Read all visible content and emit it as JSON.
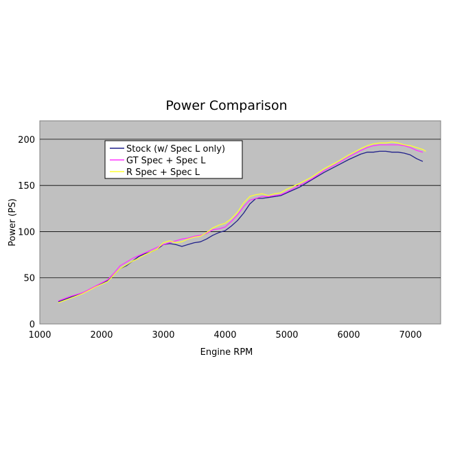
{
  "chart_data": {
    "type": "line",
    "title": "Power Comparison",
    "xlabel": "Engine RPM",
    "ylabel": "Power (PS)",
    "xlim": [
      1000,
      7400
    ],
    "ylim": [
      0,
      220
    ],
    "xticks": [
      1000,
      2000,
      3000,
      4000,
      5000,
      6000,
      7000
    ],
    "yticks": [
      0,
      50,
      100,
      150,
      200
    ],
    "grid": "horizontal",
    "legend_position": "top-left",
    "plot_background": "#c0c0c0",
    "series": [
      {
        "name": "Stock (w/ Spec L only)",
        "color": "#1f1f8a",
        "x": [
          1300,
          1500,
          1700,
          1900,
          2100,
          2200,
          2300,
          2400,
          2500,
          2600,
          2700,
          2800,
          2900,
          3000,
          3100,
          3200,
          3300,
          3400,
          3500,
          3600,
          3700,
          3800,
          3900,
          4000,
          4100,
          4200,
          4300,
          4400,
          4500,
          4600,
          4700,
          4800,
          4900,
          5000,
          5200,
          5400,
          5600,
          5800,
          6000,
          6200,
          6300,
          6400,
          6500,
          6600,
          6700,
          6800,
          6900,
          7000,
          7100,
          7200
        ],
        "y": [
          24,
          29,
          34,
          40,
          47,
          53,
          60,
          63,
          68,
          73,
          76,
          78,
          81,
          86,
          87,
          86,
          84,
          86,
          88,
          89,
          92,
          96,
          99,
          101,
          106,
          112,
          120,
          130,
          136,
          136,
          137,
          138,
          139,
          142,
          148,
          156,
          164,
          171,
          178,
          184,
          186,
          186,
          187,
          187,
          186,
          186,
          185,
          183,
          179,
          176
        ]
      },
      {
        "name": "GT Spec + Spec L",
        "color": "#ff33ff",
        "x": [
          1300,
          1500,
          1700,
          1900,
          2100,
          2200,
          2300,
          2400,
          2500,
          2600,
          2700,
          2800,
          2900,
          3000,
          3100,
          3200,
          3300,
          3400,
          3500,
          3600,
          3700,
          3800,
          3900,
          4000,
          4100,
          4200,
          4300,
          4400,
          4500,
          4600,
          4700,
          4800,
          4900,
          5000,
          5200,
          5400,
          5600,
          5800,
          6000,
          6200,
          6300,
          6400,
          6500,
          6600,
          6700,
          6800,
          6900,
          7000,
          7100,
          7200
        ],
        "y": [
          25,
          30,
          34,
          41,
          48,
          55,
          63,
          67,
          71,
          74,
          77,
          80,
          83,
          86,
          88,
          90,
          92,
          93,
          95,
          96,
          98,
          102,
          103,
          105,
          111,
          118,
          127,
          134,
          136,
          138,
          138,
          139,
          140,
          143,
          150,
          157,
          166,
          173,
          181,
          188,
          191,
          193,
          194,
          194,
          194,
          194,
          193,
          191,
          188,
          186
        ]
      },
      {
        "name": "R Spec + Spec L",
        "color": "#ffff33",
        "x": [
          1300,
          1500,
          1700,
          1900,
          2100,
          2200,
          2300,
          2400,
          2500,
          2600,
          2700,
          2800,
          2900,
          3000,
          3100,
          3200,
          3300,
          3400,
          3500,
          3600,
          3700,
          3800,
          3900,
          4000,
          4100,
          4200,
          4300,
          4400,
          4500,
          4600,
          4700,
          4800,
          4900,
          5000,
          5200,
          5400,
          5600,
          5800,
          6000,
          6200,
          6300,
          6400,
          6500,
          6600,
          6700,
          6800,
          6900,
          7000,
          7100,
          7200,
          7250
        ],
        "y": [
          23,
          28,
          33,
          40,
          46,
          53,
          60,
          64,
          68,
          71,
          75,
          78,
          81,
          88,
          90,
          88,
          89,
          92,
          94,
          95,
          99,
          104,
          107,
          109,
          114,
          121,
          131,
          138,
          140,
          141,
          139,
          141,
          142,
          146,
          152,
          159,
          168,
          175,
          183,
          190,
          193,
          195,
          196,
          196,
          197,
          196,
          194,
          193,
          191,
          189,
          187
        ]
      }
    ]
  }
}
